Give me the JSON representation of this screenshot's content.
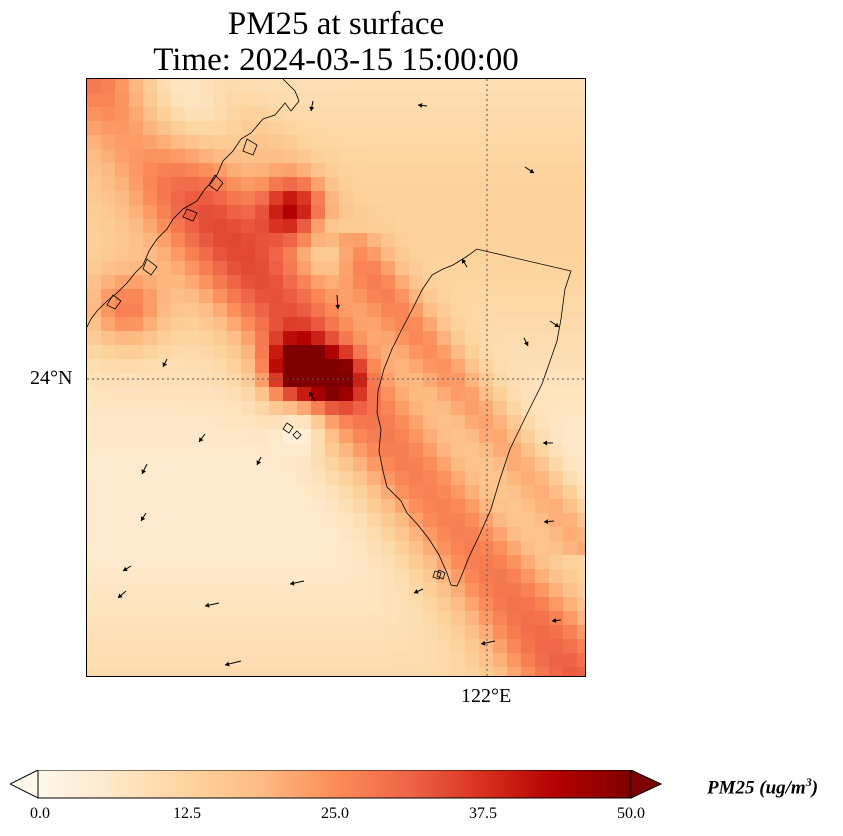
{
  "title": {
    "line1": "PM25 at surface",
    "line2": "Time: 2024-03-15 15:00:00"
  },
  "axes": {
    "lat_tick": "24°N",
    "lon_tick": "122°E",
    "gridline_style": "dotted"
  },
  "colorbar": {
    "label_main": "PM25 (ug/m",
    "label_exp": "3",
    "label_close": ")",
    "min": 0.0,
    "max": 50.0,
    "ticks": [
      "0.0",
      "12.5",
      "25.0",
      "37.5",
      "50.0"
    ],
    "extend": "both",
    "colormap": "OrRd",
    "colors": [
      "#fff7ec",
      "#fee8c8",
      "#fdd49e",
      "#fdbb84",
      "#fc8d59",
      "#ef6548",
      "#d7301f",
      "#b30000",
      "#7f0000"
    ]
  },
  "map": {
    "variable": "PM25",
    "features": [
      "pm25-field",
      "coastlines",
      "wind-vectors"
    ]
  }
}
